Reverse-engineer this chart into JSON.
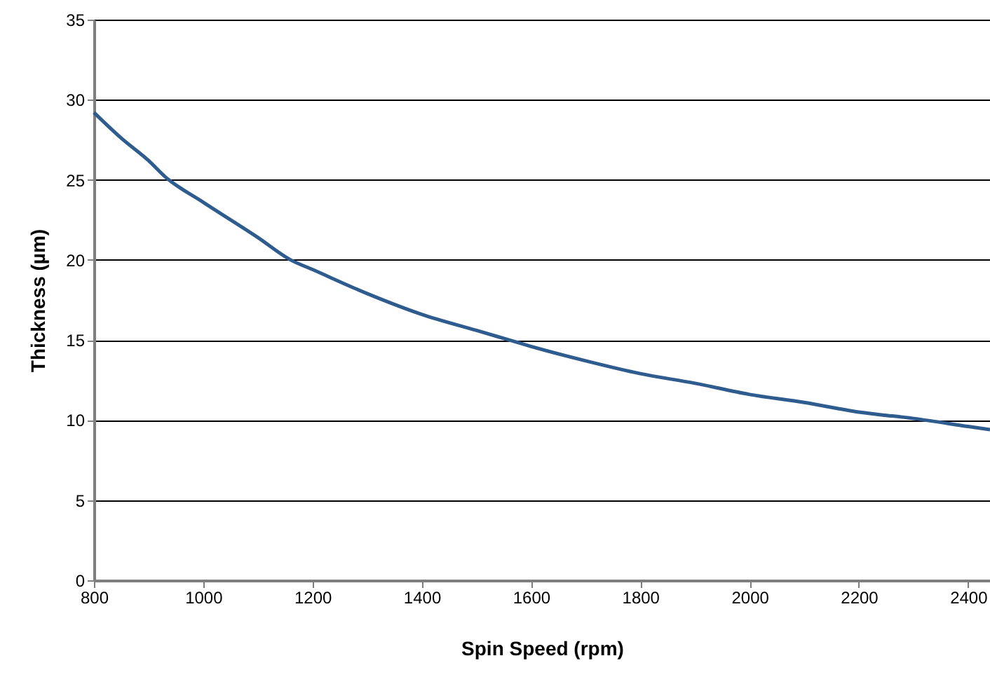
{
  "chart_data": {
    "type": "line",
    "xlabel": "Spin Speed (rpm)",
    "ylabel": "Thickness (µm)",
    "x": [
      800,
      850,
      900,
      930,
      1000,
      1100,
      1160,
      1200,
      1300,
      1400,
      1500,
      1560,
      1600,
      1700,
      1800,
      1900,
      2000,
      2100,
      2200,
      2300,
      2400,
      2440
    ],
    "series": [
      {
        "color": "#2e5c8e",
        "values": [
          29.2,
          27.6,
          26.2,
          25.2,
          23.6,
          21.4,
          20.0,
          19.4,
          17.9,
          16.6,
          15.6,
          15.0,
          14.6,
          13.7,
          12.9,
          12.3,
          11.6,
          11.1,
          10.5,
          10.1,
          9.6,
          9.4
        ]
      }
    ],
    "xlim": [
      800,
      2440
    ],
    "xticks": [
      800,
      1000,
      1200,
      1400,
      1600,
      1800,
      2000,
      2200,
      2400
    ],
    "ylim": [
      0,
      35
    ],
    "yticks": [
      0,
      5,
      10,
      15,
      20,
      25,
      30,
      35
    ],
    "grid": "y",
    "marker": "none",
    "line_style": "solid"
  }
}
